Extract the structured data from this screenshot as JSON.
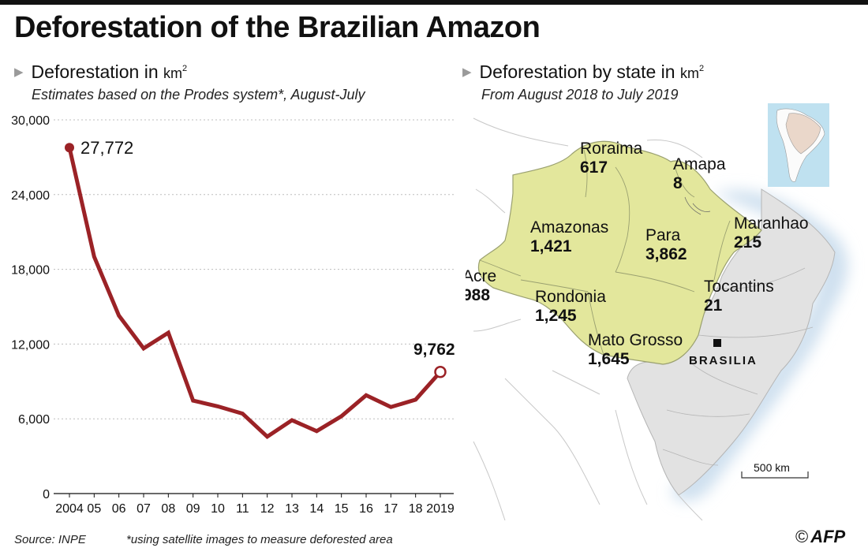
{
  "title": "Deforestation of the Brazilian Amazon",
  "left_panel": {
    "heading": "Deforestation in",
    "unit": "km",
    "unit_sup": "2",
    "subtitle": "Estimates based on the Prodes system*, August-July"
  },
  "right_panel": {
    "heading": "Deforestation by state in",
    "unit": "km",
    "unit_sup": "2",
    "subtitle": "From August 2018 to July 2019"
  },
  "chart_data": [
    {
      "type": "line",
      "x": [
        2004,
        2005,
        2006,
        2007,
        2008,
        2009,
        2010,
        2011,
        2012,
        2013,
        2014,
        2015,
        2016,
        2017,
        2018,
        2019
      ],
      "x_tick_labels": [
        "2004",
        "05",
        "06",
        "07",
        "08",
        "09",
        "10",
        "11",
        "12",
        "13",
        "14",
        "15",
        "16",
        "17",
        "18",
        "2019"
      ],
      "values": [
        27772,
        19014,
        14286,
        11651,
        12911,
        7464,
        7000,
        6418,
        4571,
        5891,
        5012,
        6207,
        7893,
        6947,
        7536,
        9762
      ],
      "ylim": [
        0,
        30000
      ],
      "y_ticks": [
        0,
        6000,
        12000,
        18000,
        24000,
        30000
      ],
      "y_tick_labels": [
        "0",
        "6,000",
        "12,000",
        "18,000",
        "24,000",
        "30,000"
      ],
      "grid": "horizontal dotted",
      "line_color": "#9b2226",
      "annotations": [
        {
          "x": 2004,
          "label": "27,772"
        },
        {
          "x": 2019,
          "label": "9,762"
        }
      ]
    },
    {
      "type": "table",
      "states": [
        {
          "name": "Roraima",
          "value": "617"
        },
        {
          "name": "Amapa",
          "value": "8"
        },
        {
          "name": "Amazonas",
          "value": "1,421"
        },
        {
          "name": "Para",
          "value": "3,862"
        },
        {
          "name": "Maranhao",
          "value": "215"
        },
        {
          "name": "Acre",
          "value": "988"
        },
        {
          "name": "Rondonia",
          "value": "1,245"
        },
        {
          "name": "Tocantins",
          "value": "21"
        },
        {
          "name": "Mato Grosso",
          "value": "1,645"
        }
      ],
      "capital_label": "BRASILIA",
      "scale_label": "500 km",
      "colors": {
        "amazon": "#e3e79c",
        "brazil": "#e2e2e2",
        "neighbours": "#ffffff",
        "ocean_halo": "#cfe0ef",
        "inset_ocean": "#bfe1f0"
      }
    }
  ],
  "footer": {
    "source": "Source: INPE",
    "note": "*using satellite images to measure deforested area",
    "logo_text": "AFP",
    "logo_symbol": "©"
  }
}
